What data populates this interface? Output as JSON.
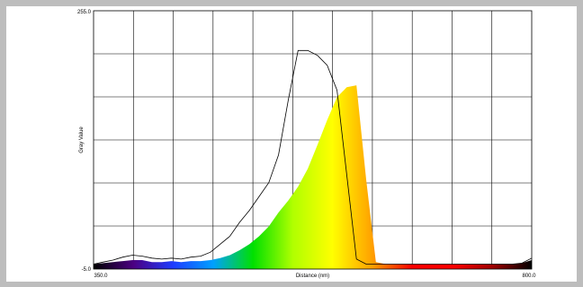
{
  "chart_data": {
    "type": "area",
    "xlabel": "Distance (nm)",
    "ylabel": "Gray Value",
    "xlim": [
      350.0,
      800.0
    ],
    "ylim": [
      -5.0,
      255.0
    ],
    "x_tick_labels": [
      "350.0",
      "800.0"
    ],
    "y_tick_labels": [
      "255.0",
      "-5.0"
    ],
    "grid": true,
    "grid_divisions": {
      "x": 11,
      "y": 6
    },
    "x": [
      350,
      360,
      370,
      380,
      390,
      400,
      410,
      420,
      430,
      440,
      450,
      460,
      470,
      480,
      490,
      500,
      510,
      520,
      530,
      540,
      550,
      560,
      570,
      580,
      590,
      600,
      610,
      620,
      630,
      640,
      650,
      660,
      670,
      680,
      690,
      700,
      710,
      720,
      730,
      740,
      750,
      760,
      770,
      780,
      790,
      800
    ],
    "series": [
      {
        "values": [
          0,
          1,
          2,
          3,
          4,
          4,
          2,
          2,
          3,
          2,
          3,
          3,
          4,
          6,
          9,
          14,
          20,
          28,
          38,
          52,
          64,
          78,
          96,
          120,
          145,
          168,
          178,
          180,
          85,
          2,
          0,
          0,
          0,
          0,
          0,
          0,
          0,
          0,
          0,
          0,
          0,
          0,
          0,
          0,
          1,
          4
        ],
        "color": "#ff0000"
      },
      {
        "values": [
          0,
          2,
          4,
          7,
          9,
          8,
          6,
          5,
          6,
          5,
          7,
          8,
          12,
          20,
          28,
          42,
          54,
          68,
          82,
          110,
          165,
          215,
          215,
          210,
          200,
          175,
          90,
          5,
          0,
          0,
          0,
          0,
          0,
          0,
          0,
          0,
          0,
          0,
          0,
          0,
          0,
          0,
          0,
          0,
          1,
          6
        ],
        "color": "#000000"
      }
    ],
    "colors": {
      "frame": "#bdbdbd",
      "grid": "#000000",
      "filled_series_gradient": [
        "#000000",
        "#4b0082",
        "#1e3cff",
        "#00a0ff",
        "#00e000",
        "#b0ff00",
        "#ffff00",
        "#ffa000",
        "#ff0000",
        "#ff0000",
        "#a00000",
        "#000000"
      ]
    }
  }
}
